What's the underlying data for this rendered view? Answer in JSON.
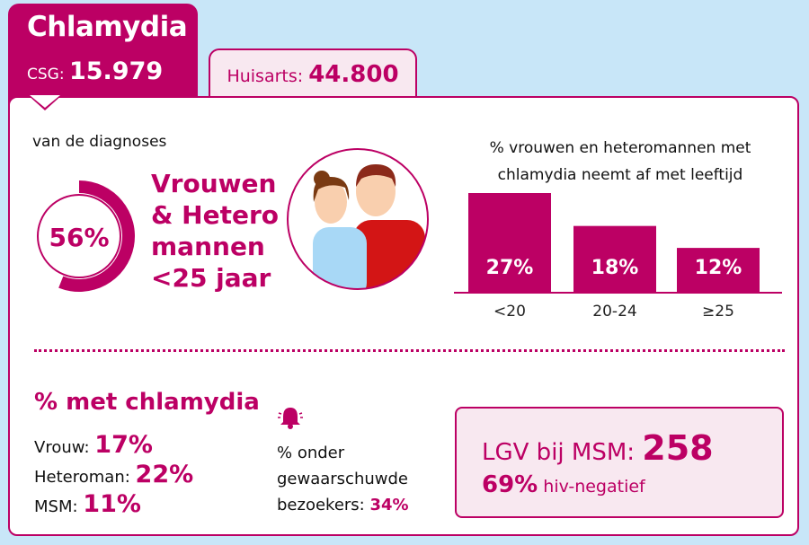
{
  "header": {
    "title": "Chlamydia",
    "csg_label": "CSG:",
    "csg_value": "15.979",
    "huisarts_label": "Huisarts:",
    "huisarts_value": "44.800"
  },
  "diagnoses": {
    "label": "van de diagnoses",
    "percent": "56%",
    "percent_value": 56,
    "group_lines": [
      "Vrouwen",
      "& Hetero",
      "mannen",
      "<25 jaar"
    ]
  },
  "colors": {
    "accent": "#bc0064",
    "background": "#c8e6f8",
    "box_fill": "#f8e8f0"
  },
  "chart_data": {
    "type": "bar",
    "title": "% vrouwen en heteromannen met chlamydia neemt af met leeftijd",
    "categories": [
      "<20",
      "20-24",
      "≥25"
    ],
    "values": [
      27,
      18,
      12
    ],
    "data_labels": [
      "27%",
      "18%",
      "12%"
    ],
    "ylim": [
      0,
      30
    ],
    "grid": false
  },
  "met_chlamydia": {
    "title": "% met chlamydia",
    "rows": [
      {
        "label": "Vrouw:",
        "value": "17%"
      },
      {
        "label": "Heteroman:",
        "value": "22%"
      },
      {
        "label": "MSM:",
        "value": "11%"
      }
    ]
  },
  "warned": {
    "icon": "bell-icon",
    "line1": "% onder",
    "line2": "gewaarschuwde",
    "line3": "bezoekers:",
    "value": "34%"
  },
  "lgv": {
    "label": "LGV bij MSM:",
    "value": "258",
    "hiv_percent": "69%",
    "hiv_label": "hiv-negatief"
  }
}
